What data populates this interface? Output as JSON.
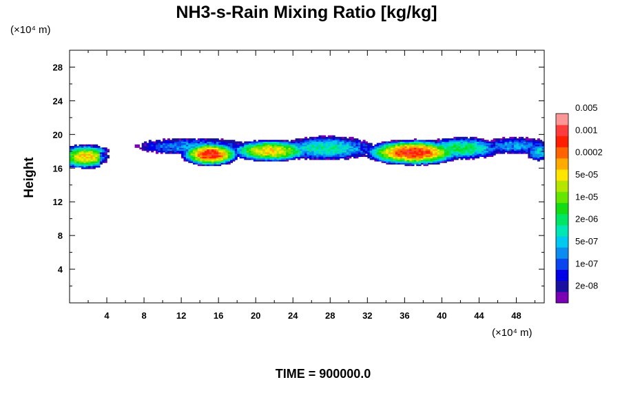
{
  "chart_data": {
    "type": "heatmap",
    "title": "NH3-s-Rain Mixing Ratio [kg/kg]",
    "xlabel": "",
    "ylabel": "Height",
    "x_unit": "(×10⁴ m)",
    "y_unit": "(×10⁴ m)",
    "xlim": [
      0,
      51
    ],
    "ylim": [
      0,
      30
    ],
    "x_ticks": [
      4,
      8,
      12,
      16,
      20,
      24,
      28,
      32,
      36,
      40,
      44,
      48
    ],
    "y_ticks": [
      4,
      8,
      12,
      16,
      20,
      24,
      28
    ],
    "time_label": "TIME = 900000.0",
    "colorbar": {
      "colors": [
        "#7b00b4",
        "#1a10a0",
        "#0000e6",
        "#0a46f0",
        "#0a8cf0",
        "#00c8f0",
        "#00e6b4",
        "#00e664",
        "#14dc14",
        "#64e600",
        "#b4e600",
        "#ffe600",
        "#ffaa00",
        "#ff6400",
        "#ff1e00",
        "#ff3c3c",
        "#ff9696"
      ],
      "labels": [
        "2e-08",
        "1e-07",
        "5e-07",
        "2e-06",
        "1e-05",
        "5e-05",
        "0.0002",
        "0.001",
        "0.005"
      ]
    },
    "clouds": [
      {
        "x": 1.6,
        "y": 17.3,
        "rx": 2.8,
        "ry": 1.3,
        "peak": 11
      },
      {
        "x": 13.2,
        "y": 18.5,
        "rx": 5.8,
        "ry": 0.9,
        "peak": 4
      },
      {
        "x": 15.0,
        "y": 17.6,
        "rx": 2.9,
        "ry": 1.3,
        "peak": 14
      },
      {
        "x": 21.5,
        "y": 18.0,
        "rx": 4.0,
        "ry": 1.2,
        "peak": 11
      },
      {
        "x": 27.5,
        "y": 18.3,
        "rx": 4.8,
        "ry": 1.3,
        "peak": 6
      },
      {
        "x": 36.8,
        "y": 17.8,
        "rx": 4.8,
        "ry": 1.4,
        "peak": 14
      },
      {
        "x": 42.0,
        "y": 18.3,
        "rx": 4.0,
        "ry": 1.2,
        "peak": 7
      },
      {
        "x": 47.8,
        "y": 18.6,
        "rx": 3.5,
        "ry": 0.9,
        "peak": 4
      },
      {
        "x": 50.3,
        "y": 17.9,
        "rx": 1.3,
        "ry": 1.0,
        "peak": 5
      }
    ]
  }
}
